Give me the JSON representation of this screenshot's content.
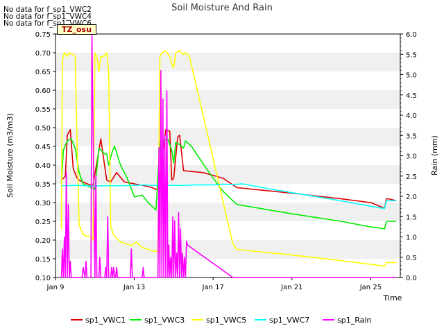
{
  "nodata_messages": [
    "No data for f_sp1_VWC2",
    "No data for f_sp1_VWC4",
    "No data for f_sp1_VWC6"
  ],
  "site_tag": "TZ_osu",
  "chart_data": {
    "type": "line",
    "title": "Soil Moisture And Rain",
    "xlabel": "Time",
    "ylabel": "Soil Moisture (m3/m3)",
    "y2label": "Rain (mm)",
    "xlim": [
      9.0,
      26.5
    ],
    "ylim": [
      0.1,
      0.75
    ],
    "y2lim": [
      0.0,
      6.0
    ],
    "x_ticks": [
      9,
      13,
      17,
      21,
      25
    ],
    "x_tick_labels": [
      "Jan 9",
      "Jan 13",
      "Jan 17",
      "Jan 21",
      "Jan 25"
    ],
    "y_ticks": [
      "0.10",
      "0.15",
      "0.20",
      "0.25",
      "0.30",
      "0.35",
      "0.40",
      "0.45",
      "0.50",
      "0.55",
      "0.60",
      "0.65",
      "0.70",
      "0.75"
    ],
    "y2_ticks": [
      "0.0",
      "0.5",
      "1.0",
      "1.5",
      "2.0",
      "2.5",
      "3.0",
      "3.5",
      "4.0",
      "4.5",
      "5.0",
      "5.5",
      "6.0"
    ],
    "grid": "horizontal bands",
    "legend_position": "bottom",
    "series": [
      {
        "name": "sp1_VWC1",
        "color": "#dd0000",
        "axis": "left",
        "x": [
          9.3,
          9.5,
          9.6,
          9.75,
          9.9,
          10.1,
          10.2,
          10.4,
          10.6,
          10.9,
          11.3,
          11.6,
          11.8,
          12.1,
          12.5,
          13.0,
          13.5,
          13.9,
          14.1,
          14.2,
          14.4,
          14.6,
          14.8,
          14.9,
          15.0,
          15.2,
          15.3,
          15.5,
          16.5,
          17.5,
          18.2,
          21.0,
          23.5,
          25.0,
          25.7,
          25.8,
          25.9,
          26.3
        ],
        "y": [
          0.36,
          0.37,
          0.48,
          0.495,
          0.39,
          0.365,
          0.36,
          0.355,
          0.35,
          0.345,
          0.47,
          0.36,
          0.355,
          0.38,
          0.355,
          0.35,
          0.345,
          0.34,
          0.335,
          0.338,
          0.41,
          0.495,
          0.49,
          0.36,
          0.365,
          0.475,
          0.48,
          0.385,
          0.38,
          0.365,
          0.34,
          0.325,
          0.31,
          0.3,
          0.285,
          0.31,
          0.31,
          0.305
        ]
      },
      {
        "name": "sp1_VWC3",
        "color": "#00ee00",
        "axis": "left",
        "x": [
          9.3,
          9.4,
          9.6,
          9.8,
          10.0,
          10.2,
          10.4,
          10.6,
          10.8,
          11.0,
          11.2,
          11.3,
          11.5,
          11.6,
          11.7,
          11.9,
          12.0,
          12.3,
          12.6,
          12.9,
          13.0,
          13.4,
          13.7,
          14.0,
          14.1,
          14.3,
          14.5,
          14.7,
          14.8,
          14.9,
          15.0,
          15.1,
          15.3,
          15.5,
          15.6,
          15.9,
          16.8,
          17.5,
          18.2,
          21.0,
          23.5,
          25.0,
          25.7,
          25.8,
          26.3
        ],
        "y": [
          0.35,
          0.44,
          0.465,
          0.47,
          0.445,
          0.38,
          0.35,
          0.345,
          0.34,
          0.335,
          0.445,
          0.44,
          0.43,
          0.43,
          0.4,
          0.44,
          0.45,
          0.4,
          0.37,
          0.33,
          0.315,
          0.32,
          0.3,
          0.285,
          0.28,
          0.46,
          0.465,
          0.47,
          0.455,
          0.44,
          0.405,
          0.46,
          0.455,
          0.445,
          0.465,
          0.45,
          0.38,
          0.33,
          0.295,
          0.27,
          0.25,
          0.235,
          0.23,
          0.25,
          0.25
        ]
      },
      {
        "name": "sp1_VWC5",
        "color": "#ffff00",
        "axis": "left",
        "x": [
          9.3,
          9.35,
          9.45,
          9.6,
          9.7,
          9.9,
          10.0,
          10.1,
          10.2,
          10.4,
          10.6,
          10.8,
          10.9,
          11.0,
          11.1,
          11.2,
          11.3,
          11.45,
          11.6,
          11.7,
          11.8,
          11.9,
          12.0,
          12.3,
          12.6,
          12.9,
          13.1,
          13.4,
          13.7,
          14.0,
          14.2,
          14.3,
          14.4,
          14.6,
          14.8,
          14.9,
          15.0,
          15.1,
          15.3,
          15.4,
          15.5,
          15.6,
          15.8,
          18.0,
          18.2,
          21.0,
          23.5,
          25.0,
          25.7,
          25.8,
          26.3
        ],
        "y": [
          0.23,
          0.68,
          0.7,
          0.69,
          0.7,
          0.695,
          0.69,
          0.45,
          0.24,
          0.215,
          0.21,
          0.21,
          0.2,
          0.7,
          0.69,
          0.65,
          0.69,
          0.69,
          0.7,
          0.65,
          0.24,
          0.22,
          0.21,
          0.195,
          0.19,
          0.185,
          0.195,
          0.18,
          0.175,
          0.17,
          0.17,
          0.69,
          0.7,
          0.705,
          0.69,
          0.67,
          0.66,
          0.7,
          0.705,
          0.7,
          0.695,
          0.7,
          0.69,
          0.19,
          0.175,
          0.16,
          0.145,
          0.135,
          0.13,
          0.14,
          0.14
        ]
      },
      {
        "name": "sp1_VWC7",
        "color": "#00ffff",
        "axis": "left",
        "x": [
          9.3,
          9.5,
          10.0,
          10.5,
          11.0,
          11.5,
          12.0,
          12.5,
          13.0,
          13.5,
          14.0,
          14.5,
          15.0,
          15.5,
          16.0,
          17.0,
          17.5,
          18.0,
          18.5,
          20.0,
          22.0,
          24.0,
          25.0,
          25.7,
          25.8,
          26.3
        ],
        "y": [
          0.345,
          0.345,
          0.346,
          0.345,
          0.344,
          0.345,
          0.345,
          0.345,
          0.346,
          0.347,
          0.346,
          0.347,
          0.346,
          0.346,
          0.347,
          0.347,
          0.349,
          0.348,
          0.35,
          0.335,
          0.318,
          0.3,
          0.29,
          0.284,
          0.305,
          0.305
        ]
      },
      {
        "name": "sp1_Rain",
        "color": "#ff00ff",
        "axis": "right",
        "x": [
          9.3,
          9.35,
          9.4,
          9.45,
          9.5,
          9.55,
          9.6,
          9.65,
          9.7,
          9.75,
          9.8,
          9.85,
          10.0,
          10.35,
          10.4,
          10.5,
          10.55,
          10.6,
          10.65,
          10.8,
          10.85,
          11.0,
          11.05,
          11.1,
          11.2,
          11.25,
          11.3,
          11.5,
          11.55,
          11.6,
          11.65,
          11.7,
          11.8,
          11.85,
          11.9,
          11.95,
          12.0,
          12.05,
          12.1,
          12.15,
          12.2,
          12.3,
          12.35,
          12.4,
          12.45,
          12.5,
          12.8,
          12.85,
          12.9,
          12.95,
          13.4,
          13.45,
          13.5,
          13.55,
          13.8,
          13.85,
          14.0,
          14.2,
          14.25,
          14.3,
          14.35,
          14.4,
          14.45,
          14.5,
          14.55,
          14.6,
          14.65,
          14.7,
          14.75,
          14.8,
          14.85,
          14.9,
          14.95,
          15.0,
          15.05,
          15.1,
          15.15,
          15.2,
          15.25,
          15.3,
          15.35,
          15.4,
          15.45,
          15.5,
          15.55,
          15.6,
          15.65,
          15.7,
          18.0,
          26.3
        ],
        "y": [
          0,
          0.7,
          0,
          1.0,
          0,
          2.6,
          0,
          1.8,
          0,
          0.4,
          0,
          0,
          0,
          0,
          0.25,
          0,
          0.4,
          0,
          0,
          0,
          6.0,
          0,
          2.5,
          0,
          0,
          0.5,
          0,
          0,
          0.25,
          0,
          1.5,
          0,
          0,
          0.25,
          0,
          0.25,
          0,
          0,
          0.25,
          0,
          0,
          0,
          0,
          0,
          0,
          0,
          0,
          0.7,
          0,
          0,
          0,
          0.25,
          0,
          0,
          0,
          0,
          0,
          0,
          3.2,
          0,
          5.1,
          0,
          4.4,
          0,
          3.5,
          0,
          4.6,
          0,
          0.8,
          0,
          0.5,
          0,
          1.5,
          0,
          1.4,
          0,
          0.6,
          0,
          1.6,
          0,
          1.2,
          0,
          0.6,
          0,
          0.5,
          0,
          0.9,
          0.8,
          0,
          0
        ]
      }
    ]
  }
}
